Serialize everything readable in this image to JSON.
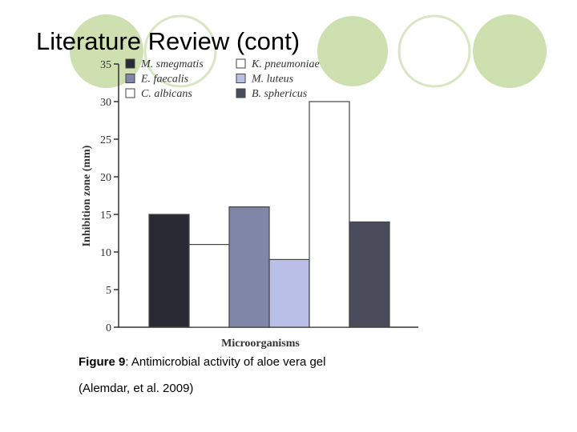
{
  "slide": {
    "title": "Literature Review (cont)",
    "figure_number": "Figure 9",
    "caption": ": Antimicrobial activity of aloe vera gel",
    "source": "(Alemdar, et al. 2009)"
  },
  "chart_data": {
    "type": "bar",
    "x_label": "Microorganisms",
    "y_label": "Inhibition zone (mm)",
    "categories": [
      null
    ],
    "series": [
      {
        "name": "M. smegmatis",
        "color": "#2a2a35",
        "values": [
          15
        ]
      },
      {
        "name": "K. pneumoniae",
        "color": "#ffffff",
        "values": [
          11
        ]
      },
      {
        "name": "E. faecalis",
        "color": "#7f86a8",
        "values": [
          16
        ]
      },
      {
        "name": "M. luteus",
        "color": "#b9bfe6",
        "values": [
          9
        ]
      },
      {
        "name": "C. albicans",
        "color": "#ffffff",
        "values": [
          30
        ]
      },
      {
        "name": "B. sphericus",
        "color": "#4a4c5c",
        "values": [
          14
        ]
      }
    ],
    "ylim": [
      0,
      35
    ],
    "yticks": [
      0,
      5,
      10,
      15,
      20,
      25,
      30,
      35
    ],
    "grid": false
  }
}
